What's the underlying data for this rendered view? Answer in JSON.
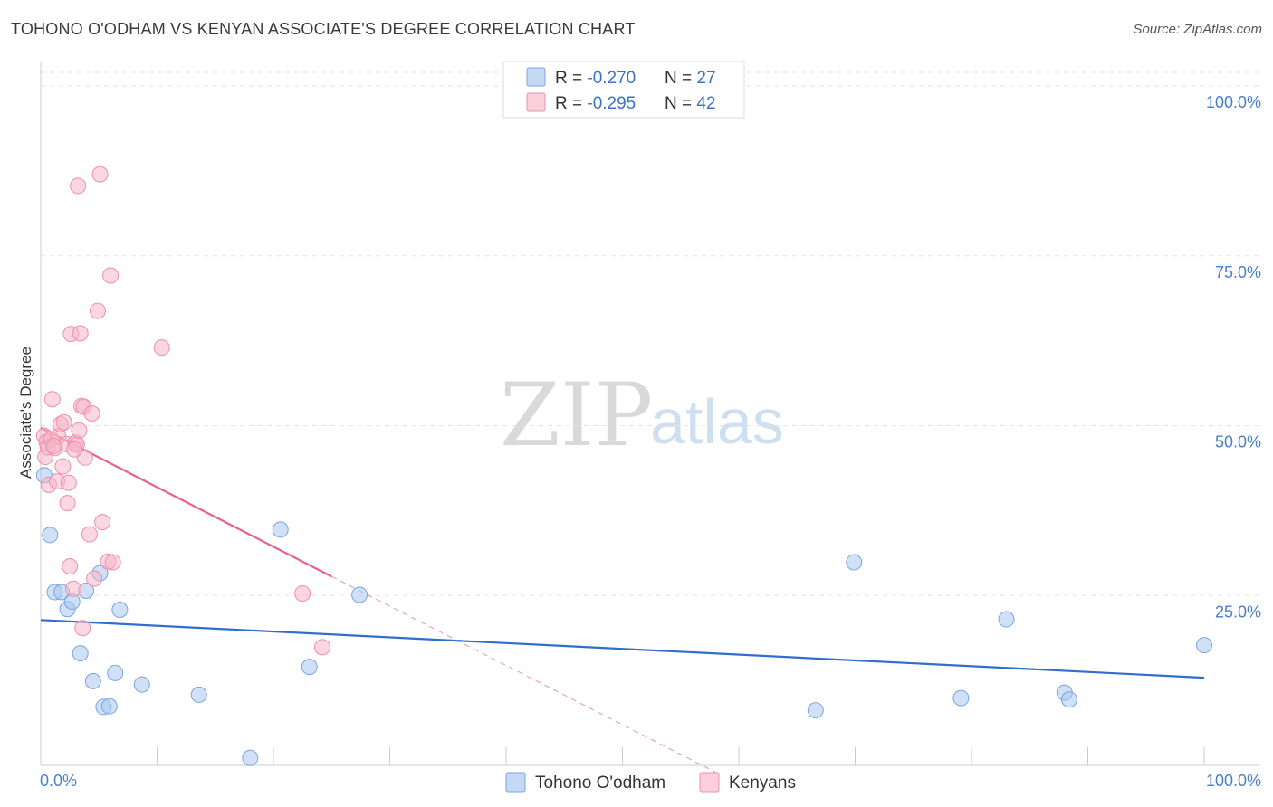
{
  "title": "TOHONO O'ODHAM VS KENYAN ASSOCIATE'S DEGREE CORRELATION CHART",
  "source": "Source: ZipAtlas.com",
  "watermark": {
    "zip": "ZIP",
    "atlas": "atlas"
  },
  "legend_top": [
    {
      "r_label": "R = ",
      "r_value": "-0.270",
      "n_label": "N = ",
      "n_value": "27",
      "color": "#a9c7ef"
    },
    {
      "r_label": "R = ",
      "r_value": "-0.295",
      "n_label": "N = ",
      "n_value": "42",
      "color": "#f6b7c9"
    }
  ],
  "legend_bottom": [
    {
      "label": "Tohono O'odham",
      "color": "#a9c7ef"
    },
    {
      "label": "Kenyans",
      "color": "#f6b7c9"
    }
  ],
  "chart_data": {
    "type": "scatter",
    "title": "TOHONO O'ODHAM VS KENYAN ASSOCIATE'S DEGREE CORRELATION CHART",
    "xlabel": "",
    "ylabel": "Associate's Degree",
    "xlim": [
      0,
      100
    ],
    "ylim": [
      0,
      102
    ],
    "x_tick_labels": [
      "0.0%",
      "100.0%"
    ],
    "y_ticks": [
      25,
      50,
      75,
      100
    ],
    "y_tick_labels": [
      "25.0%",
      "50.0%",
      "75.0%",
      "100.0%"
    ],
    "grid": true,
    "series": [
      {
        "name": "Tohono O'odham",
        "color": "#a9c7ef",
        "stroke": "#7aa6df",
        "trend_color": "#2f6fcb",
        "trend": {
          "x0": 0,
          "y0": 21.4,
          "x1": 100,
          "y1": 12.9
        },
        "points": [
          [
            0.3,
            42.7
          ],
          [
            0.8,
            33.9
          ],
          [
            1.2,
            25.5
          ],
          [
            1.8,
            25.5
          ],
          [
            2.3,
            23.0
          ],
          [
            2.7,
            24.1
          ],
          [
            3.4,
            16.5
          ],
          [
            3.9,
            25.7
          ],
          [
            4.5,
            12.4
          ],
          [
            5.1,
            28.3
          ],
          [
            5.4,
            8.6
          ],
          [
            5.9,
            8.7
          ],
          [
            6.4,
            13.6
          ],
          [
            6.8,
            22.9
          ],
          [
            8.7,
            11.9
          ],
          [
            13.6,
            10.4
          ],
          [
            18.0,
            1.1
          ],
          [
            20.6,
            34.7
          ],
          [
            23.1,
            14.5
          ],
          [
            27.4,
            25.1
          ],
          [
            69.9,
            29.9
          ],
          [
            66.6,
            8.1
          ],
          [
            79.1,
            9.9
          ],
          [
            83.0,
            21.5
          ],
          [
            88.0,
            10.7
          ],
          [
            88.4,
            9.7
          ],
          [
            100.0,
            17.7
          ]
        ]
      },
      {
        "name": "Kenyans",
        "color": "#f6b7c9",
        "stroke": "#ee8fab",
        "trend_color": "#e5628f",
        "trend": {
          "x0": 0,
          "y0": 49.7,
          "x1": 25.0,
          "y1": 27.8
        },
        "trend_dashed": {
          "x0": 25.0,
          "y0": 27.8,
          "x1": 58.0,
          "y1": -1.0
        },
        "points": [
          [
            0.3,
            48.5
          ],
          [
            0.4,
            45.4
          ],
          [
            0.5,
            47.6
          ],
          [
            0.6,
            46.8
          ],
          [
            0.7,
            41.3
          ],
          [
            0.9,
            48.0
          ],
          [
            1.0,
            53.9
          ],
          [
            1.2,
            46.7
          ],
          [
            1.4,
            41.8
          ],
          [
            1.5,
            48.4
          ],
          [
            1.7,
            50.2
          ],
          [
            1.9,
            44.0
          ],
          [
            2.0,
            50.5
          ],
          [
            2.2,
            47.3
          ],
          [
            2.3,
            38.6
          ],
          [
            2.4,
            41.6
          ],
          [
            2.5,
            29.3
          ],
          [
            2.6,
            63.5
          ],
          [
            2.8,
            26.0
          ],
          [
            3.0,
            47.5
          ],
          [
            3.1,
            47.2
          ],
          [
            3.2,
            85.3
          ],
          [
            3.3,
            49.3
          ],
          [
            3.4,
            63.6
          ],
          [
            3.5,
            52.9
          ],
          [
            3.6,
            20.2
          ],
          [
            3.7,
            52.8
          ],
          [
            3.8,
            45.3
          ],
          [
            4.2,
            34.0
          ],
          [
            4.4,
            51.8
          ],
          [
            4.6,
            27.5
          ],
          [
            4.9,
            66.9
          ],
          [
            5.1,
            87.0
          ],
          [
            5.3,
            35.8
          ],
          [
            5.8,
            30.0
          ],
          [
            6.0,
            72.1
          ],
          [
            6.2,
            29.9
          ],
          [
            10.4,
            61.5
          ],
          [
            22.5,
            25.3
          ],
          [
            24.2,
            17.4
          ],
          [
            1.1,
            47.0
          ],
          [
            2.9,
            46.5
          ]
        ]
      }
    ]
  }
}
